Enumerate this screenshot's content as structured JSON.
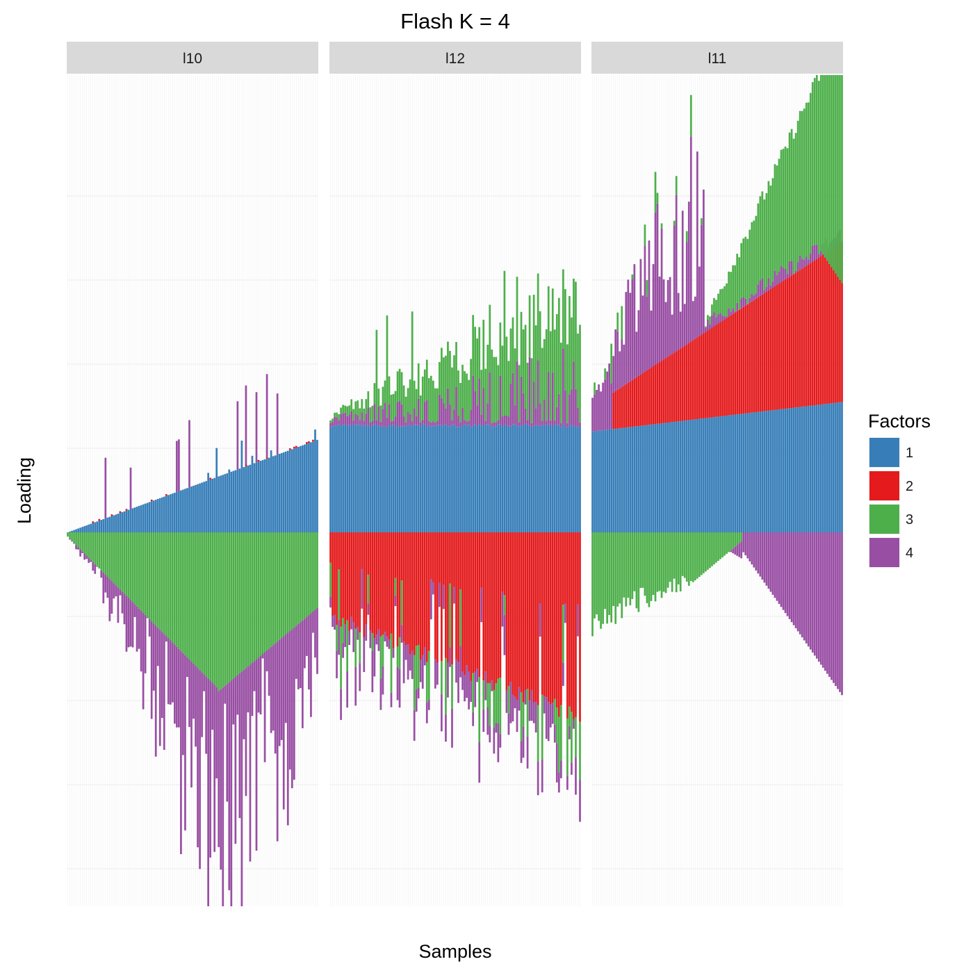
{
  "chart_data": {
    "type": "bar",
    "title": "Flash K = 4",
    "xlabel": "Samples",
    "ylabel": "Loading",
    "stacked": true,
    "diverging": true,
    "x_tick_labels": false,
    "y_tick_labels": false,
    "grid": true,
    "legend_position": "right",
    "panels": [
      {
        "name": "l10",
        "samples": 120
      },
      {
        "name": "l12",
        "samples": 120
      },
      {
        "name": "l11",
        "samples": 120
      }
    ],
    "legend": {
      "title": "Factors",
      "entries": [
        {
          "key": "1",
          "color": "#377EB8"
        },
        {
          "key": "2",
          "color": "#E41A1C"
        },
        {
          "key": "3",
          "color": "#4DAF4A"
        },
        {
          "key": "4",
          "color": "#984EA3"
        }
      ]
    },
    "series_profiles": {
      "l10": {
        "positive": {
          "factor1_range": [
            0.0,
            1.1
          ],
          "factor2_range": [
            0.0,
            0.02
          ],
          "factor3_range": [
            0.0,
            0.0
          ],
          "factor4_spikes_max": 0.95
        },
        "negative": {
          "factor3_range": [
            -0.05,
            -1.85
          ],
          "factor4_max_total": -4.0
        }
      },
      "l12": {
        "positive": {
          "factor1_level": 1.27,
          "factor4_range": [
            0.0,
            0.9
          ],
          "factor3_range": [
            0.05,
            2.7
          ]
        },
        "negative": {
          "factor2_range": [
            -1.0,
            -2.2
          ],
          "factor3_range": [
            -0.8,
            -0.3
          ],
          "factor4_max_total": -2.6
        }
      },
      "l11": {
        "positive": {
          "factor1_range": [
            1.2,
            1.55
          ],
          "factor2_range": [
            0.0,
            1.9
          ],
          "factor4_range": [
            0.0,
            3.3
          ],
          "factor3_range": [
            0.0,
            4.9
          ]
        },
        "negative": {
          "factor3_range": [
            -1.15,
            0.0
          ],
          "factor4_max_total": -1.95
        }
      }
    }
  }
}
